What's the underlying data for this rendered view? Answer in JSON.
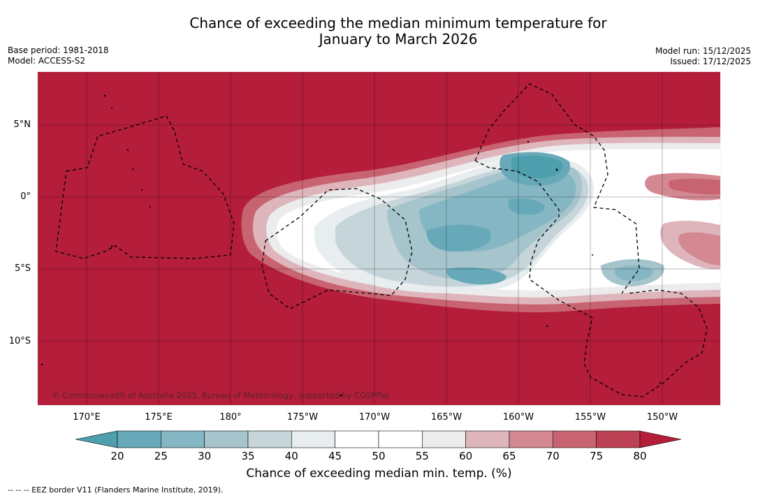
{
  "header": {
    "title_line1": "Chance of exceeding the median minimum temperature for",
    "title_line2": "January to March 2026",
    "base_period": "Base period: 1981-2018",
    "model": "Model: ACCESS-S2",
    "model_run": "Model run: 15/12/2025",
    "issued": "Issued: 17/12/2025"
  },
  "map": {
    "lat_labels": [
      "5°N",
      "0°",
      "5°S",
      "10°S"
    ],
    "lon_labels": [
      "170°E",
      "175°E",
      "180°",
      "175°W",
      "170°W",
      "165°W",
      "160°W",
      "155°W",
      "150°W"
    ],
    "copyright": "© Commonwealth of Australia 2025, Bureau of Meteorology, supported by COSPPac",
    "background_color": "#b41e3a"
  },
  "colorbar": {
    "ticks": [
      "20",
      "25",
      "30",
      "35",
      "40",
      "45",
      "50",
      "55",
      "60",
      "65",
      "70",
      "75",
      "80"
    ],
    "colors": [
      "#4d9fae",
      "#67a9b8",
      "#85b6c3",
      "#a6c4cc",
      "#c6d5da",
      "#e8eef0",
      "#ffffff",
      "#ffffff",
      "#ececec",
      "#dfb5bc",
      "#d48891",
      "#c86472",
      "#bd4154",
      "#b41e3a"
    ],
    "label": "Chance of exceeding median min. temp. (%)"
  },
  "footnote": "--  --  -- EEZ border V11 (Flanders Marine Institute, 2019)."
}
